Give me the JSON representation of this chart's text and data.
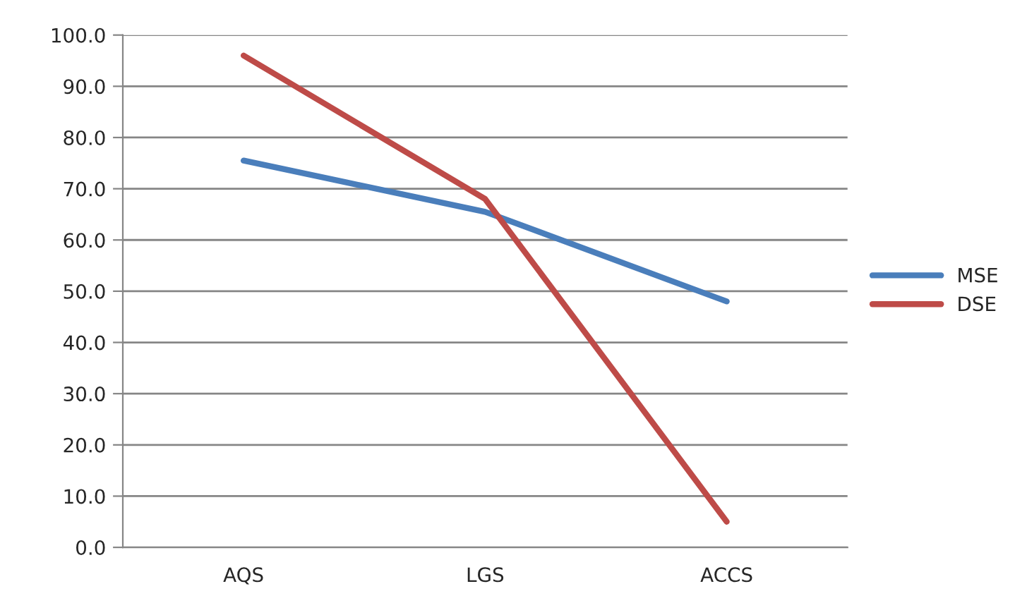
{
  "chart_data": {
    "type": "line",
    "categories": [
      "AQS",
      "LGS",
      "ACCS"
    ],
    "series": [
      {
        "name": "MSE",
        "color": "#4a7ebb",
        "values": [
          75.5,
          65.5,
          48.0
        ]
      },
      {
        "name": "DSE",
        "color": "#be4b48",
        "values": [
          96.0,
          68.0,
          5.0
        ]
      }
    ],
    "ylim": [
      0,
      100
    ],
    "yticks": [
      {
        "value": 0,
        "label": "0.0"
      },
      {
        "value": 10,
        "label": "10.0"
      },
      {
        "value": 20,
        "label": "20.0"
      },
      {
        "value": 30,
        "label": "30.0"
      },
      {
        "value": 40,
        "label": "40.0"
      },
      {
        "value": 50,
        "label": "50.0"
      },
      {
        "value": 60,
        "label": "60.0"
      },
      {
        "value": 70,
        "label": "70.0"
      },
      {
        "value": 80,
        "label": "80.0"
      },
      {
        "value": 90,
        "label": "90.0"
      },
      {
        "value": 100,
        "label": "100.0"
      }
    ],
    "grid": "y",
    "legend": "right",
    "marker": "none",
    "line_style": "solid"
  }
}
